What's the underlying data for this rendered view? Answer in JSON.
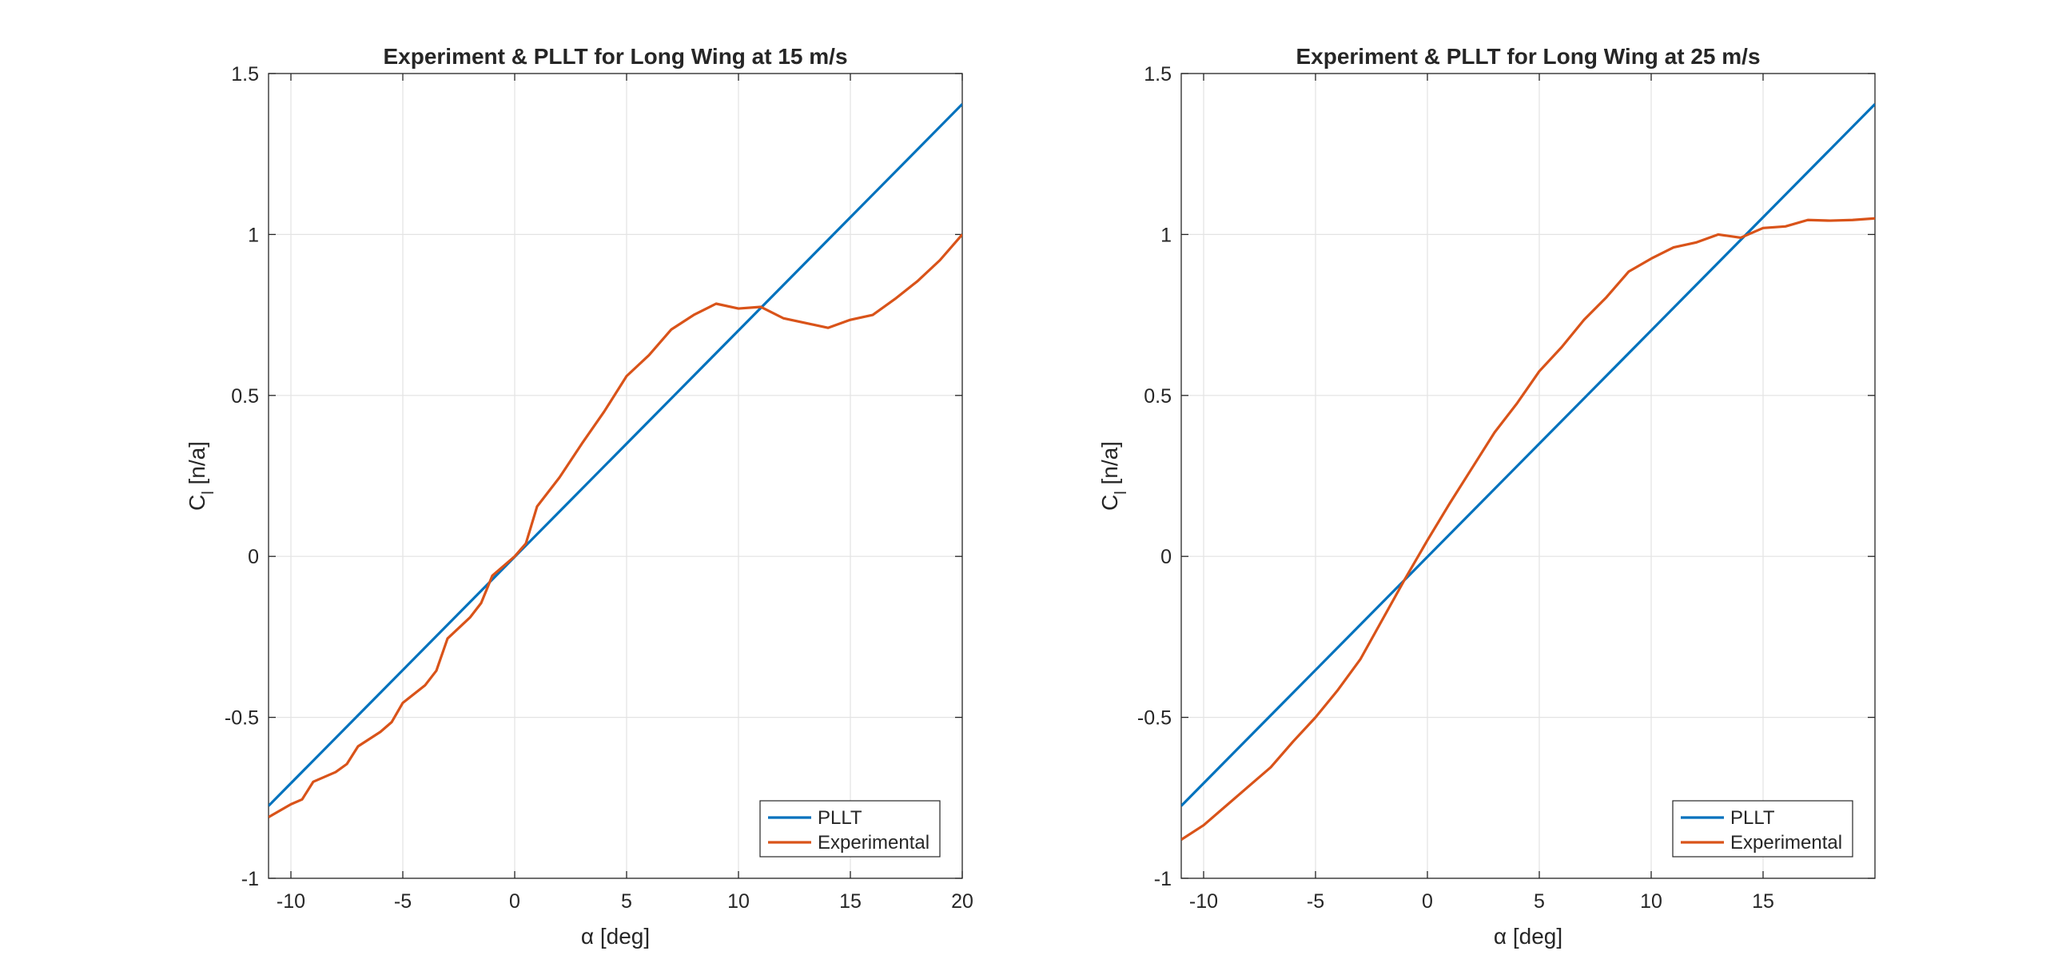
{
  "chart_data": [
    {
      "type": "line",
      "title": "Experiment & PLLT for Long Wing at 15 m/s",
      "xlabel": "α [deg]",
      "ylabel": {
        "main": "C",
        "sub": "l",
        "suffix": " [n/a]"
      },
      "xlim": [
        -11,
        20
      ],
      "ylim": [
        -1,
        1.5
      ],
      "xticks": [
        -10,
        -5,
        0,
        5,
        10,
        15,
        20
      ],
      "xtick_labels": [
        "-10",
        "-5",
        "0",
        "5",
        "10",
        "15",
        "20"
      ],
      "yticks": [
        -1,
        -0.5,
        0,
        0.5,
        1,
        1.5
      ],
      "ytick_labels": [
        "-1",
        "-0.5",
        "0",
        "0.5",
        "1",
        "1.5"
      ],
      "grid": true,
      "legend_position": "bottom-right",
      "series": [
        {
          "name": "PLLT",
          "color": "#0072BD",
          "x": [
            -11,
            20
          ],
          "y": [
            -0.775,
            1.405
          ]
        },
        {
          "name": "Experimental",
          "color": "#D95319",
          "x": [
            -11,
            -10,
            -9.5,
            -9,
            -8,
            -7.5,
            -7,
            -6,
            -5.5,
            -5,
            -4,
            -3.5,
            -3,
            -2,
            -1.5,
            -1,
            0,
            0.5,
            1,
            2,
            3,
            4,
            5,
            6,
            7,
            8,
            9,
            10,
            11,
            12,
            13,
            14,
            15,
            16,
            17,
            18,
            19,
            20
          ],
          "y": [
            -0.81,
            -0.77,
            -0.755,
            -0.7,
            -0.67,
            -0.645,
            -0.59,
            -0.545,
            -0.515,
            -0.455,
            -0.4,
            -0.355,
            -0.255,
            -0.19,
            -0.145,
            -0.06,
            0.0,
            0.04,
            0.155,
            0.245,
            0.35,
            0.45,
            0.56,
            0.625,
            0.705,
            0.75,
            0.785,
            0.77,
            0.775,
            0.74,
            0.725,
            0.71,
            0.735,
            0.75,
            0.8,
            0.855,
            0.92,
            1.0
          ]
        }
      ]
    },
    {
      "type": "line",
      "title": "Experiment & PLLT for Long Wing at 25 m/s",
      "xlabel": "α [deg]",
      "ylabel": {
        "main": "C",
        "sub": "l",
        "suffix": " [n/a]"
      },
      "xlim": [
        -11,
        20
      ],
      "ylim": [
        -1,
        1.5
      ],
      "xticks": [
        -10,
        -5,
        0,
        5,
        10,
        15
      ],
      "xtick_labels": [
        "-10",
        "-5",
        "0",
        "5",
        "10",
        "15"
      ],
      "yticks": [
        -1,
        -0.5,
        0,
        0.5,
        1,
        1.5
      ],
      "ytick_labels": [
        "-1",
        "-0.5",
        "0",
        "0.5",
        "1",
        "1.5"
      ],
      "grid": true,
      "legend_position": "bottom-right",
      "series": [
        {
          "name": "PLLT",
          "color": "#0072BD",
          "x": [
            -11,
            20
          ],
          "y": [
            -0.775,
            1.405
          ]
        },
        {
          "name": "Experimental",
          "color": "#D95319",
          "x": [
            -11,
            -10,
            -9,
            -8,
            -7,
            -6,
            -5,
            -4,
            -3,
            -2,
            -1,
            0,
            1,
            2,
            3,
            4,
            5,
            6,
            7,
            8,
            9,
            10,
            11,
            12,
            13,
            14,
            15,
            16,
            17,
            18,
            19,
            20
          ],
          "y": [
            -0.88,
            -0.835,
            -0.775,
            -0.715,
            -0.655,
            -0.575,
            -0.5,
            -0.415,
            -0.32,
            -0.195,
            -0.07,
            0.05,
            0.165,
            0.275,
            0.385,
            0.475,
            0.575,
            0.65,
            0.735,
            0.805,
            0.885,
            0.925,
            0.96,
            0.975,
            1.0,
            0.99,
            1.02,
            1.025,
            1.045,
            1.043,
            1.045,
            1.05
          ]
        }
      ]
    }
  ]
}
